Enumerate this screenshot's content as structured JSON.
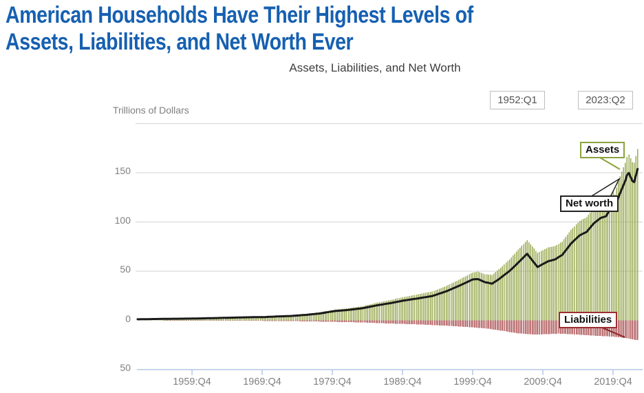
{
  "header": {
    "title_line1": "American Households Have Their Highest Levels of",
    "title_line2": "Assets, Liabilities, and Net Worth Ever",
    "title_color": "#1660b1"
  },
  "chart": {
    "title": "Assets, Liabilities, and Net Worth",
    "unit_label": "Trillions of Dollars",
    "range_start": "1952:Q1",
    "range_end": "2023:Q2"
  },
  "chart_data": {
    "type": "bar+line",
    "title": "Assets, Liabilities, and Net Worth",
    "ylabel": "Trillions of Dollars",
    "x_unit": "decimal years, quarterly (Q1=.00 Q2=.25 Q3=.50 Q4=.75)",
    "x_start": 1952.0,
    "x_end": 2023.25,
    "x_step": 0.25,
    "ylim": [
      -50,
      200
    ],
    "grid": true,
    "y_gridline_values": [
      200,
      150,
      100,
      50
    ],
    "y_ticks": [
      {
        "v": 150,
        "label": "150"
      },
      {
        "v": 100,
        "label": "100"
      },
      {
        "v": 50,
        "label": "50"
      },
      {
        "v": 0,
        "label": "0"
      },
      {
        "v": -50,
        "label": "50"
      }
    ],
    "x_ticks": [
      {
        "t": 1959.75,
        "label": "1959:Q4"
      },
      {
        "t": 1969.75,
        "label": "1969:Q4"
      },
      {
        "t": 1979.75,
        "label": "1979:Q4"
      },
      {
        "t": 1989.75,
        "label": "1989:Q4"
      },
      {
        "t": 1999.75,
        "label": "1999:Q4"
      },
      {
        "t": 2009.75,
        "label": "2009:Q4"
      },
      {
        "t": 2019.75,
        "label": "2019:Q4"
      }
    ],
    "series": [
      {
        "name": "Assets",
        "type": "bar",
        "direction": "up",
        "color": "#9aaa52",
        "label_box_color": "#8aa33c",
        "anchors": [
          [
            1952.0,
            1.2
          ],
          [
            1956.0,
            1.75
          ],
          [
            1960.0,
            2.15
          ],
          [
            1964.0,
            2.9
          ],
          [
            1968.0,
            3.7
          ],
          [
            1970.0,
            3.9
          ],
          [
            1972.0,
            4.7
          ],
          [
            1974.0,
            5.3
          ],
          [
            1976.0,
            6.6
          ],
          [
            1978.0,
            8.3
          ],
          [
            1980.0,
            10.9
          ],
          [
            1982.0,
            12.4
          ],
          [
            1984.0,
            14.4
          ],
          [
            1986.0,
            17.8
          ],
          [
            1988.0,
            20.7
          ],
          [
            1990.0,
            23.9
          ],
          [
            1992.0,
            26.5
          ],
          [
            1994.0,
            29.5
          ],
          [
            1996.0,
            35.0
          ],
          [
            1998.0,
            42.0
          ],
          [
            1999.75,
            48.7
          ],
          [
            2000.5,
            49.5
          ],
          [
            2001.5,
            47.0
          ],
          [
            2002.5,
            46.3
          ],
          [
            2003.5,
            52.0
          ],
          [
            2005.0,
            62.0
          ],
          [
            2006.0,
            70.0
          ],
          [
            2007.5,
            81.5
          ],
          [
            2008.5,
            73.0
          ],
          [
            2009.0,
            68.5
          ],
          [
            2009.5,
            70.5
          ],
          [
            2010.5,
            74.0
          ],
          [
            2011.5,
            75.5
          ],
          [
            2012.5,
            80.0
          ],
          [
            2013.75,
            92.0
          ],
          [
            2015.0,
            101.0
          ],
          [
            2016.0,
            105.0
          ],
          [
            2017.0,
            114.0
          ],
          [
            2018.0,
            120.0
          ],
          [
            2018.75,
            122.0
          ],
          [
            2019.75,
            134.5
          ],
          [
            2020.0,
            128.0
          ],
          [
            2020.5,
            142.0
          ],
          [
            2021.0,
            151.0
          ],
          [
            2021.5,
            160.0
          ],
          [
            2021.75,
            166.0
          ],
          [
            2022.0,
            168.5
          ],
          [
            2022.5,
            161.0
          ],
          [
            2022.75,
            160.0
          ],
          [
            2023.0,
            167.0
          ],
          [
            2023.25,
            174.0
          ]
        ]
      },
      {
        "name": "Liabilities",
        "type": "bar",
        "direction": "down",
        "color": "#a84a4d",
        "label_box_color": "#9b2d31",
        "anchors": [
          [
            1952.0,
            0.1
          ],
          [
            1960.0,
            0.26
          ],
          [
            1965.0,
            0.4
          ],
          [
            1970.0,
            0.53
          ],
          [
            1975.0,
            0.85
          ],
          [
            1980.0,
            1.5
          ],
          [
            1984.0,
            2.1
          ],
          [
            1988.0,
            3.2
          ],
          [
            1992.0,
            4.1
          ],
          [
            1996.0,
            5.4
          ],
          [
            2000.0,
            7.2
          ],
          [
            2002.0,
            8.5
          ],
          [
            2004.0,
            10.6
          ],
          [
            2006.0,
            13.0
          ],
          [
            2008.5,
            14.4
          ],
          [
            2010.0,
            14.1
          ],
          [
            2012.0,
            13.4
          ],
          [
            2014.0,
            14.1
          ],
          [
            2016.0,
            15.0
          ],
          [
            2018.0,
            15.9
          ],
          [
            2019.75,
            16.5
          ],
          [
            2020.5,
            17.0
          ],
          [
            2021.5,
            18.0
          ],
          [
            2022.25,
            19.0
          ],
          [
            2023.25,
            20.1
          ]
        ]
      },
      {
        "name": "Net worth",
        "type": "line",
        "color": "#1a1a1a",
        "derived": "Assets minus Liabilities"
      }
    ],
    "axis_colors": {
      "gridline": "#d9d9d9",
      "bottom_axis": "#b4c7e7",
      "tick_text": "#7f7f7f"
    }
  }
}
